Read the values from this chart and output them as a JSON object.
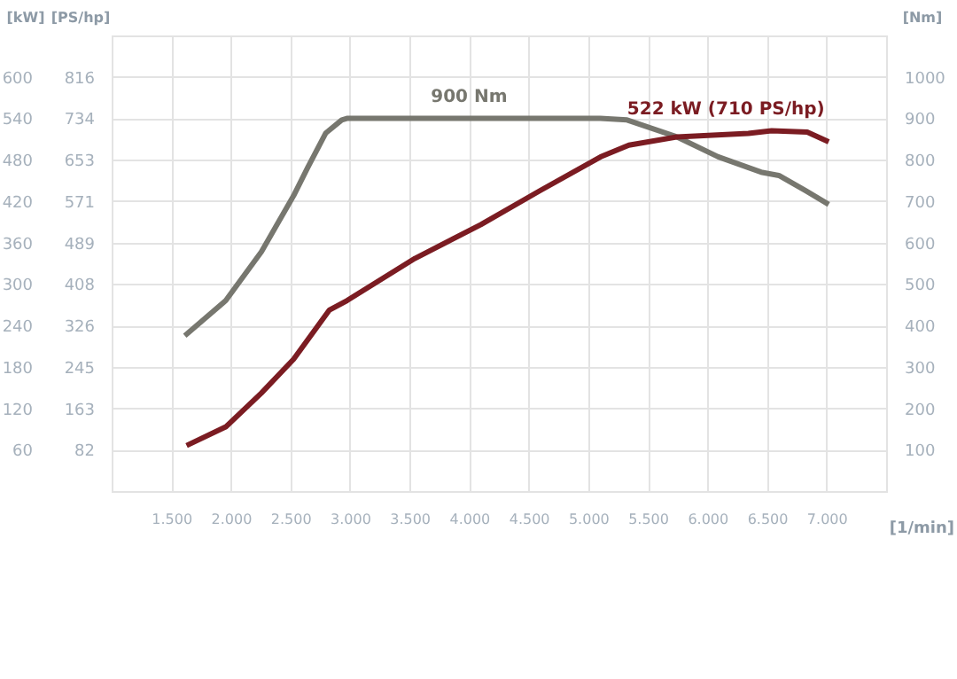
{
  "chart_data": {
    "type": "line",
    "xlabel": "[1/min]",
    "ylabel": "[kW]",
    "y3label": "[PS/hp]",
    "y2label": "[Nm]",
    "xlim": [
      1000,
      7500
    ],
    "xticks": [
      {
        "value": 1500,
        "label": "1.500"
      },
      {
        "value": 2000,
        "label": "2.000"
      },
      {
        "value": 2500,
        "label": "2.500"
      },
      {
        "value": 3000,
        "label": "3.000"
      },
      {
        "value": 3500,
        "label": "3.500"
      },
      {
        "value": 4000,
        "label": "4.000"
      },
      {
        "value": 4500,
        "label": "4.500"
      },
      {
        "value": 5000,
        "label": "5.000"
      },
      {
        "value": 5500,
        "label": "5.500"
      },
      {
        "value": 6000,
        "label": "6.000"
      },
      {
        "value": 6500,
        "label": "6.500"
      },
      {
        "value": 7000,
        "label": "7.000"
      }
    ],
    "ylim": [
      0,
      660
    ],
    "yticks": [
      60,
      120,
      180,
      240,
      300,
      360,
      420,
      480,
      540,
      600
    ],
    "y3lim": [
      0,
      897.6
    ],
    "y3ticks": [
      {
        "value": 81.6,
        "label": "82"
      },
      {
        "value": 163.2,
        "label": "163"
      },
      {
        "value": 244.8,
        "label": "245"
      },
      {
        "value": 326.4,
        "label": "326"
      },
      {
        "value": 408,
        "label": "408"
      },
      {
        "value": 489,
        "label": "489"
      },
      {
        "value": 571.2,
        "label": "571"
      },
      {
        "value": 652.8,
        "label": "653"
      },
      {
        "value": 734.4,
        "label": "734"
      },
      {
        "value": 816,
        "label": "816"
      }
    ],
    "y2lim": [
      0,
      1100
    ],
    "y2ticks": [
      100,
      200,
      300,
      400,
      500,
      600,
      700,
      800,
      900,
      1000
    ],
    "grid": true,
    "line_style": "solid",
    "series": [
      {
        "name": "900 Nm",
        "color": "#77776f",
        "axis": "y2",
        "x": [
          1614,
          1958,
          2257,
          2527,
          2647,
          2796,
          2931,
          2980,
          3500,
          4000,
          4500,
          5100,
          5326,
          5745,
          6090,
          6450,
          6600,
          6825,
          7018
        ],
        "values": [
          375,
          460,
          578,
          713,
          782,
          864,
          896,
          900,
          900,
          900,
          900,
          900,
          896,
          855,
          807,
          770,
          762,
          725,
          692
        ]
      },
      {
        "name": "522 kW (710 PS/hp)",
        "color": "#7b1c22",
        "x": [
          1629,
          1958,
          2257,
          2527,
          2826,
          2976,
          3545,
          4099,
          4593,
          5102,
          5341,
          5745,
          6344,
          6539,
          6838,
          7018
        ],
        "values": [
          66,
          93,
          142,
          191,
          262,
          276,
          337,
          386,
          435,
          484,
          501,
          513,
          518,
          522,
          520,
          506
        ]
      }
    ]
  }
}
